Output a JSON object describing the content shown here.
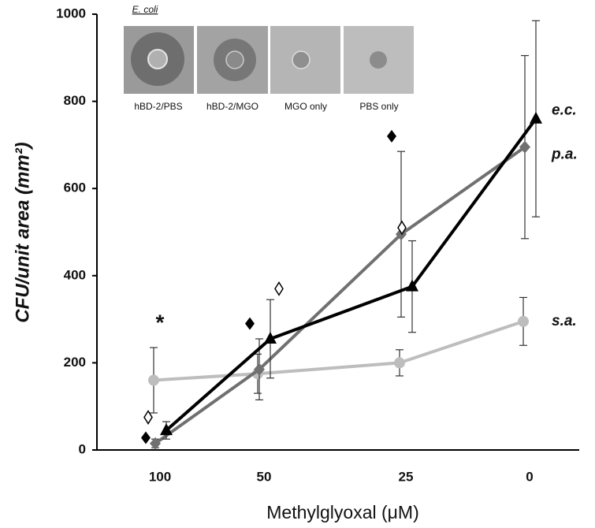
{
  "chart_data": {
    "type": "line",
    "y_label": "CFU/unit area (mm²)",
    "x_label": "Methylglyoxal (μM)",
    "categories": [
      "100",
      "50",
      "25",
      "0"
    ],
    "ylim": [
      0,
      1000
    ],
    "yticks": [
      0,
      200,
      400,
      600,
      800,
      1000
    ],
    "series": [
      {
        "name": "e.c.",
        "color": "#000000",
        "marker": "triangle",
        "values": [
          45,
          255,
          375,
          760
        ],
        "errors": [
          20,
          90,
          105,
          225
        ]
      },
      {
        "name": "p.a.",
        "color": "#707070",
        "marker": "diamond",
        "values": [
          15,
          185,
          495,
          695
        ],
        "errors": [
          10,
          70,
          190,
          210
        ]
      },
      {
        "name": "s.a.",
        "color": "#bdbdbd",
        "marker": "circle",
        "values": [
          160,
          175,
          200,
          295
        ],
        "errors": [
          75,
          45,
          30,
          55
        ]
      }
    ],
    "filled_diamond_y": [
      28,
      290,
      720,
      null
    ],
    "open_diamond_y": [
      75,
      370,
      510,
      null
    ],
    "asterisk": "*",
    "asterisk_y": [
      300,
      null,
      null,
      null
    ],
    "inset_title": "E. coli",
    "inset_labels": [
      "hBD-2/PBS",
      "hBD-2/MGO",
      "MGO only",
      "PBS only"
    ]
  }
}
